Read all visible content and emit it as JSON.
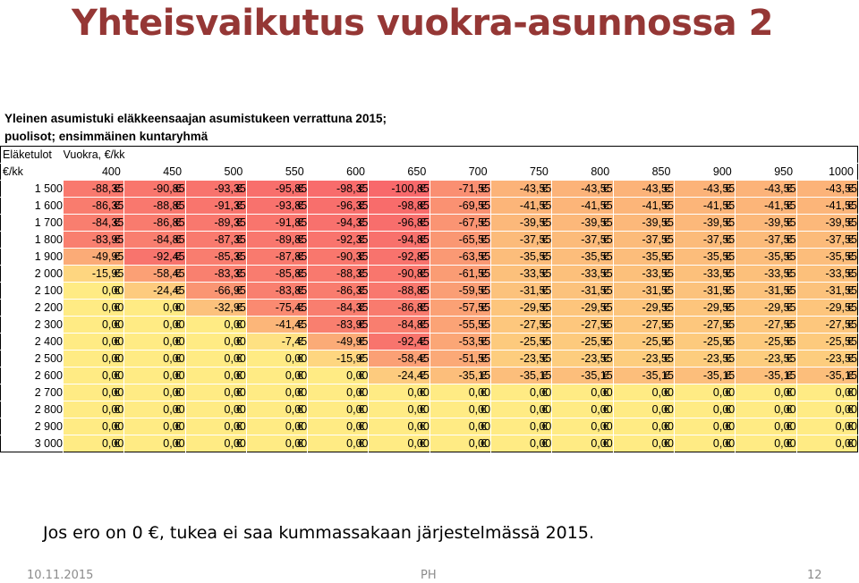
{
  "slide": {
    "title": "Yhteisvaikutus vuokra-asunnossa 2",
    "subtitle_line1": "Yleinen asumistuki eläkkeensaajan asumistukeen verrattuna 2015;",
    "subtitle_line2": "puolisot; ensimmäinen kuntaryhmä",
    "note": "Jos ero on 0 €, tukea ei saa kummassakaan järjestelmässä 2015.",
    "footer_date": "10.11.2015",
    "footer_author": "PH",
    "footer_page": "12"
  },
  "table": {
    "income_label": "Eläketulot",
    "rent_label": "Vuokra, €/kk",
    "unit_label": "€/kk",
    "currency": "€",
    "rents": [
      "400",
      "450",
      "500",
      "550",
      "600",
      "650",
      "700",
      "750",
      "800",
      "850",
      "900",
      "950",
      "1000"
    ],
    "rows": [
      {
        "income": "1 500",
        "values": [
          "-88,35",
          "-90,85",
          "-93,35",
          "-95,85",
          "-98,35",
          "-100,85",
          "-71,55",
          "-43,55",
          "-43,55",
          "-43,55",
          "-43,55",
          "-43,55",
          "-43,55"
        ]
      },
      {
        "income": "1 600",
        "values": [
          "-86,35",
          "-88,85",
          "-91,35",
          "-93,85",
          "-96,35",
          "-98,85",
          "-69,55",
          "-41,55",
          "-41,55",
          "-41,55",
          "-41,55",
          "-41,55",
          "-41,55"
        ]
      },
      {
        "income": "1 700",
        "values": [
          "-84,35",
          "-86,85",
          "-89,35",
          "-91,85",
          "-94,35",
          "-96,85",
          "-67,55",
          "-39,55",
          "-39,55",
          "-39,55",
          "-39,55",
          "-39,55",
          "-39,55"
        ]
      },
      {
        "income": "1 800",
        "values": [
          "-83,95",
          "-84,85",
          "-87,35",
          "-89,85",
          "-92,35",
          "-94,85",
          "-65,55",
          "-37,55",
          "-37,55",
          "-37,55",
          "-37,55",
          "-37,55",
          "-37,55"
        ]
      },
      {
        "income": "1 900",
        "values": [
          "-49,95",
          "-92,45",
          "-85,35",
          "-87,85",
          "-90,35",
          "-92,85",
          "-63,55",
          "-35,55",
          "-35,55",
          "-35,55",
          "-35,55",
          "-35,55",
          "-35,55"
        ]
      },
      {
        "income": "2 000",
        "values": [
          "-15,95",
          "-58,45",
          "-83,35",
          "-85,85",
          "-88,35",
          "-90,85",
          "-61,55",
          "-33,55",
          "-33,55",
          "-33,55",
          "-33,55",
          "-33,55",
          "-33,55"
        ]
      },
      {
        "income": "2 100",
        "values": [
          "0,00",
          "-24,45",
          "-66,95",
          "-83,85",
          "-86,35",
          "-88,85",
          "-59,55",
          "-31,55",
          "-31,55",
          "-31,55",
          "-31,55",
          "-31,55",
          "-31,55"
        ]
      },
      {
        "income": "2 200",
        "values": [
          "0,00",
          "0,00",
          "-32,95",
          "-75,45",
          "-84,35",
          "-86,85",
          "-57,55",
          "-29,55",
          "-29,55",
          "-29,55",
          "-29,55",
          "-29,55",
          "-29,55"
        ]
      },
      {
        "income": "2 300",
        "values": [
          "0,00",
          "0,00",
          "0,00",
          "-41,45",
          "-83,95",
          "-84,85",
          "-55,55",
          "-27,55",
          "-27,55",
          "-27,55",
          "-27,55",
          "-27,55",
          "-27,55"
        ]
      },
      {
        "income": "2 400",
        "values": [
          "0,00",
          "0,00",
          "0,00",
          "-7,45",
          "-49,95",
          "-92,45",
          "-53,55",
          "-25,55",
          "-25,55",
          "-25,55",
          "-25,55",
          "-25,55",
          "-25,55"
        ]
      },
      {
        "income": "2 500",
        "values": [
          "0,00",
          "0,00",
          "0,00",
          "0,00",
          "-15,95",
          "-58,45",
          "-51,55",
          "-23,55",
          "-23,55",
          "-23,55",
          "-23,55",
          "-23,55",
          "-23,55"
        ]
      },
      {
        "income": "2 600",
        "values": [
          "0,00",
          "0,00",
          "0,00",
          "0,00",
          "0,00",
          "-24,45",
          "-35,15",
          "-35,15",
          "-35,15",
          "-35,15",
          "-35,15",
          "-35,15",
          "-35,15"
        ]
      },
      {
        "income": "2 700",
        "values": [
          "0,00",
          "0,00",
          "0,00",
          "0,00",
          "0,00",
          "0,00",
          "0,00",
          "0,00",
          "0,00",
          "0,00",
          "0,00",
          "0,00",
          "0,00"
        ]
      },
      {
        "income": "2 800",
        "values": [
          "0,00",
          "0,00",
          "0,00",
          "0,00",
          "0,00",
          "0,00",
          "0,00",
          "0,00",
          "0,00",
          "0,00",
          "0,00",
          "0,00",
          "0,00"
        ]
      },
      {
        "income": "2 900",
        "values": [
          "0,00",
          "0,00",
          "0,00",
          "0,00",
          "0,00",
          "0,00",
          "0,00",
          "0,00",
          "0,00",
          "0,00",
          "0,00",
          "0,00",
          "0,00"
        ]
      },
      {
        "income": "3 000",
        "values": [
          "0,00",
          "0,00",
          "0,00",
          "0,00",
          "0,00",
          "0,00",
          "0,00",
          "0,00",
          "0,00",
          "0,00",
          "0,00",
          "0,00",
          "0,00"
        ]
      }
    ]
  },
  "colors": {
    "title": "#953735",
    "scale_low": "#f8696b",
    "scale_mid": "#fbaa77",
    "scale_high": "#ffeb84"
  }
}
